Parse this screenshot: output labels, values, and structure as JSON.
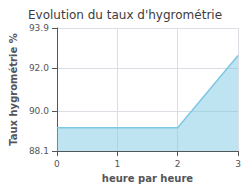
{
  "chart_data": {
    "type": "area",
    "title": "Evolution du taux d'hygrométrie",
    "xlabel": "heure par heure",
    "ylabel": "Taux hygrométrie %",
    "x": [
      0,
      1,
      2,
      3
    ],
    "values": [
      89.2,
      89.2,
      89.2,
      92.6
    ],
    "xlim": [
      0,
      3
    ],
    "ylim": [
      88.1,
      93.9
    ],
    "xticks": [
      0,
      1,
      2,
      3
    ],
    "yticks": [
      88.1,
      {
        "value": 90,
        "label": "90.0"
      },
      {
        "value": 92,
        "label": "92.0"
      },
      93.9
    ],
    "color": "#7ec8e3",
    "grid": true
  }
}
